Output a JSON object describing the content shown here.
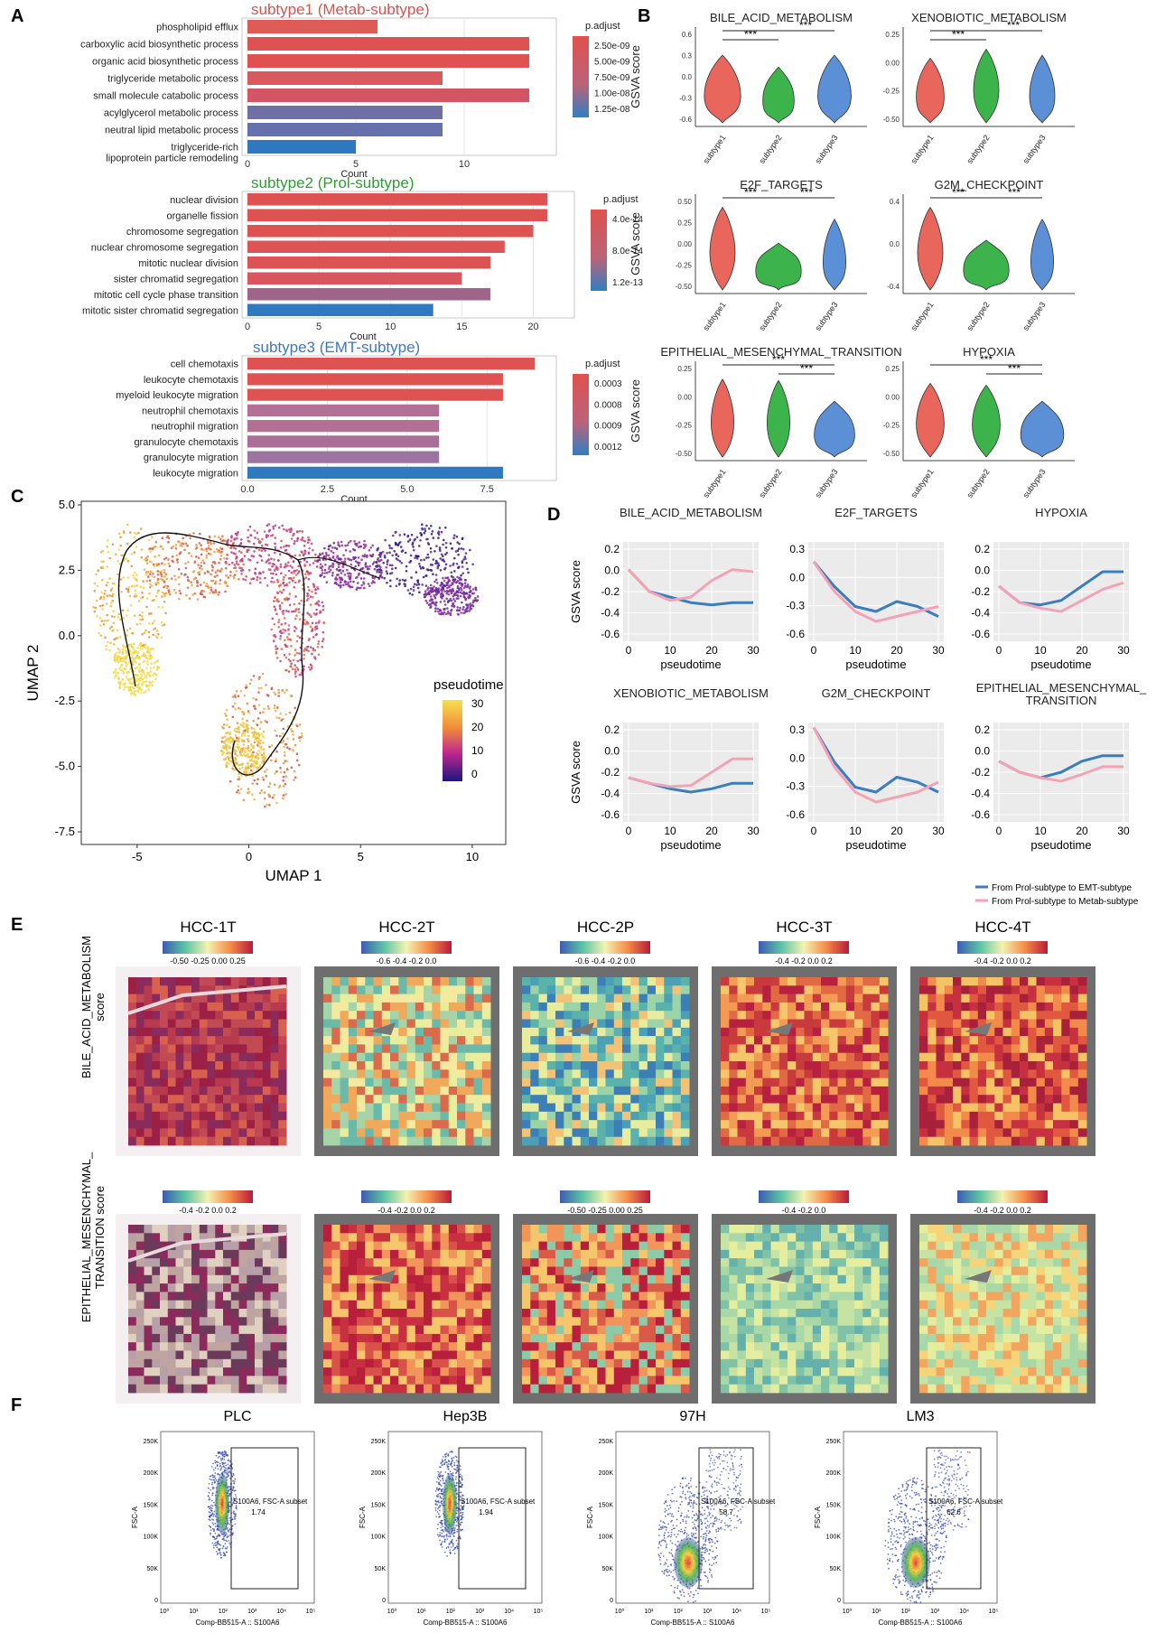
{
  "panel_letters": [
    "A",
    "B",
    "C",
    "D",
    "E",
    "F"
  ],
  "panelA": [
    {
      "title": "subtype1 (Metab-subtype)",
      "title_color": "#d9534f",
      "terms": [
        "phospholipid efflux",
        "carboxylic acid biosynthetic process",
        "organic acid biosynthetic process",
        "triglyceride metabolic process",
        "small molecule catabolic process",
        "acylglycerol metabolic process",
        "neutral lipid metabolic process",
        "triglyceride-rich lipoprotein particle remodeling"
      ],
      "values": [
        6,
        13,
        13,
        9,
        13,
        9,
        9,
        5
      ],
      "padj": [
        "2.50e-09",
        "5.00e-09",
        "7.50e-09",
        "1.00e-08",
        "1.25e-08"
      ],
      "ticks": [
        "0",
        "5",
        "10"
      ],
      "xmax": 14,
      "xlabel": "Count"
    },
    {
      "title": "subtype2 (Prol-subtype)",
      "title_color": "#2ca02c",
      "terms": [
        "nuclear division",
        "organelle fission",
        "chromosome segregation",
        "nuclear chromosome segregation",
        "mitotic nuclear division",
        "sister chromatid segregation",
        "mitotic cell cycle phase transition",
        "mitotic sister chromatid segregation"
      ],
      "values": [
        21,
        21,
        20,
        18,
        17,
        15,
        17,
        13
      ],
      "padj": [
        "4.0e-14",
        "8.0e-14",
        "1.2e-13"
      ],
      "ticks": [
        "0",
        "5",
        "10",
        "15",
        "20"
      ],
      "xmax": 22.5,
      "xlabel": "Count"
    },
    {
      "title": "subtype3 (EMT-subtype)",
      "title_color": "#3b78c2",
      "terms": [
        "cell chemotaxis",
        "leukocyte chemotaxis",
        "myeloid leukocyte migration",
        "neutrophil chemotaxis",
        "neutrophil migration",
        "granulocyte chemotaxis",
        "granulocyte migration",
        "leukocyte migration"
      ],
      "values": [
        9,
        8,
        8,
        6,
        6,
        6,
        6,
        8
      ],
      "padj": [
        "0.0003",
        "0.0008",
        "0.0009",
        "0.0012"
      ],
      "ticks": [
        "0.0",
        "2.5",
        "5.0",
        "7.5"
      ],
      "xmax": 9.5,
      "xlabel": "Count"
    }
  ],
  "panelB": {
    "ylabel": "GSVA score",
    "groups": [
      "subtype1",
      "subtype2",
      "subtype3"
    ],
    "colors": [
      "#e8665c",
      "#3cb44b",
      "#5b8fd6"
    ],
    "sig": "***",
    "plots": [
      {
        "title": "BILE_ACID_METABOLISM",
        "ticks": [
          "0.6",
          "0.3",
          "0.0",
          "-0.3",
          "-0.6"
        ]
      },
      {
        "title": "XENOBIOTIC_METABOLISM",
        "ticks": [
          "0.25",
          "0.00",
          "-0.25",
          "-0.50"
        ]
      },
      {
        "title": "E2F_TARGETS",
        "ticks": [
          "0.50",
          "0.25",
          "0.00",
          "-0.25",
          "-0.50"
        ]
      },
      {
        "title": "G2M_CHECKPOINT",
        "ticks": [
          "0.4",
          "0.0",
          "-0.4"
        ]
      },
      {
        "title": "EPITHELIAL_MESENCHYMAL_TRANSITION",
        "ticks": [
          "0.25",
          "0.00",
          "-0.25",
          "-0.50"
        ]
      },
      {
        "title": "HYPOXIA",
        "ticks": [
          "0.25",
          "0.00",
          "-0.25",
          "-0.50"
        ]
      }
    ]
  },
  "panelC": {
    "xlabel": "UMAP 1",
    "ylabel": "UMAP 2",
    "xticks": [
      "-5",
      "0",
      "5",
      "10"
    ],
    "yticks": [
      "5.0",
      "2.5",
      "0.0",
      "-2.5",
      "-5.0",
      "-7.5"
    ],
    "legend_title": "pseudotime",
    "legend_ticks": [
      "30",
      "20",
      "10",
      "0"
    ]
  },
  "panelD": {
    "ylabel": "GSVA score",
    "xlabel": "pseudotime",
    "xticks": [
      "0",
      "10",
      "20",
      "30"
    ],
    "legend": [
      "From Prol-subtype to EMT-subtype",
      "From Prol-subtype to Metab-subtype"
    ],
    "colors": [
      "#3b7dbf",
      "#f4a3b6"
    ],
    "plots": [
      {
        "title": "BILE_ACID_METABOLISM",
        "ticks": [
          "0.2",
          "0.0",
          "-0.2",
          "-0.4",
          "-0.6"
        ]
      },
      {
        "title": "E2F_TARGETS",
        "ticks": [
          "0.3",
          "0.0",
          "-0.3",
          "-0.6"
        ]
      },
      {
        "title": "HYPOXIA",
        "ticks": [
          "0.2",
          "0.0",
          "-0.2",
          "-0.4",
          "-0.6"
        ]
      },
      {
        "title": "XENOBIOTIC_METABOLISM",
        "ticks": [
          "0.2",
          "0.0",
          "-0.2",
          "-0.4",
          "-0.6"
        ]
      },
      {
        "title": "G2M_CHECKPOINT",
        "ticks": [
          "0.3",
          "0.0",
          "-0.3",
          "-0.6"
        ]
      },
      {
        "title": "EPITHELIAL_MESENCHYMAL_\nTRANSITION",
        "ticks": [
          "0.2",
          "0.0",
          "-0.2",
          "-0.4",
          "-0.6"
        ]
      }
    ]
  },
  "panelE": {
    "samples": [
      "HCC-1T",
      "HCC-2T",
      "HCC-2P",
      "HCC-3T",
      "HCC-4T"
    ],
    "row_labels": [
      "BILE_ACID_METABOLISM\nscore",
      "EPITHELIAL_MESENCHYMAL_\nTRANSITION score"
    ],
    "scales_row1": [
      "-0.50 -0.25 0.00 0.25",
      "-0.6  -0.4  -0.2  0.0",
      "-0.6  -0.4  -0.2  0.0",
      "-0.4 -0.2 0.0 0.2",
      "-0.4 -0.2 0.0 0.2"
    ],
    "scales_row2": [
      "-0.4 -0.2 0.0 0.2",
      "-0.4 -0.2 0.0 0.2",
      "-0.50 -0.25 0.00 0.25",
      "-0.4  -0.2  0.0",
      "-0.4 -0.2 0.0 0.2"
    ]
  },
  "panelF": {
    "samples": [
      "PLC",
      "Hep3B",
      "97H",
      "LM3"
    ],
    "gate_label": "S100A6, FSC-A subset",
    "values": [
      "1.74",
      "1.94",
      "58.7",
      "62.6"
    ],
    "ylabel": "FSC-A",
    "xlabel": "Comp-BB515-A :: S100A6",
    "yticks": [
      "250K",
      "200K",
      "150K",
      "100K",
      "50K",
      "0"
    ],
    "xticks": [
      "10⁰",
      "10¹",
      "10²",
      "10³",
      "10⁴",
      "10⁵"
    ]
  }
}
